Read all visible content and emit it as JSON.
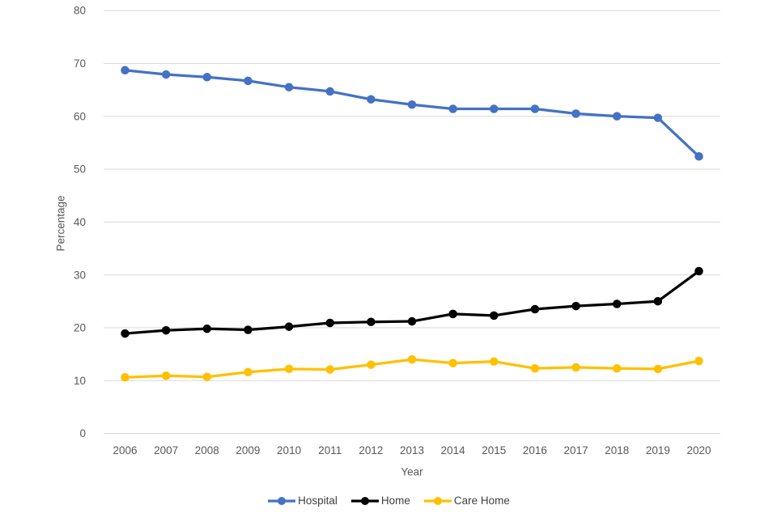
{
  "chart_data": {
    "type": "line",
    "title": "",
    "xlabel": "Year",
    "ylabel": "Percentage",
    "x": [
      2006,
      2007,
      2008,
      2009,
      2010,
      2011,
      2012,
      2013,
      2014,
      2015,
      2016,
      2017,
      2018,
      2019,
      2020
    ],
    "ylim": [
      0,
      80
    ],
    "ytick_step": 10,
    "grid": "horizontal-only",
    "legend_position": "bottom-center",
    "grid_color": "#d9d9d9",
    "axis_text_color": "#595959",
    "background_color": "#ffffff",
    "series": [
      {
        "name": "Hospital",
        "color": "#4472c4",
        "values": [
          68.7,
          67.9,
          67.4,
          66.7,
          65.5,
          64.7,
          63.2,
          62.2,
          61.4,
          61.4,
          61.4,
          60.5,
          60.0,
          59.7,
          52.4
        ]
      },
      {
        "name": "Home",
        "color": "#000000",
        "values": [
          18.9,
          19.5,
          19.8,
          19.6,
          20.2,
          20.9,
          21.1,
          21.2,
          22.6,
          22.3,
          23.5,
          24.1,
          24.5,
          25.0,
          30.7
        ]
      },
      {
        "name": "Care Home",
        "color": "#ffc000",
        "values": [
          10.6,
          10.9,
          10.7,
          11.6,
          12.2,
          12.1,
          13.0,
          14.0,
          13.3,
          13.6,
          12.3,
          12.5,
          12.3,
          12.2,
          13.7
        ]
      }
    ]
  }
}
